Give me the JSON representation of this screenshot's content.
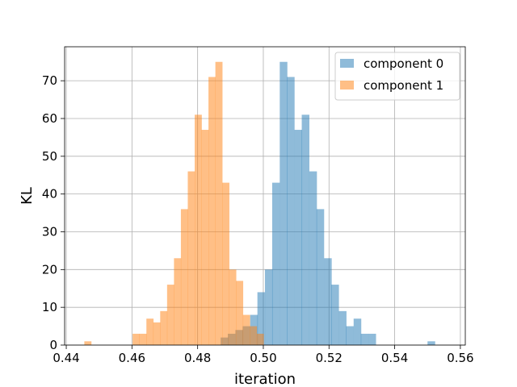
{
  "chart_data": {
    "type": "histogram",
    "xlabel": "iteration",
    "ylabel": "KL",
    "xlim": [
      0.4395,
      0.5615
    ],
    "ylim": [
      0,
      79
    ],
    "xticks": [
      0.44,
      0.46,
      0.48,
      0.5,
      0.52,
      0.54,
      0.56
    ],
    "xtick_labels": [
      "0.44",
      "0.46",
      "0.48",
      "0.50",
      "0.52",
      "0.54",
      "0.56"
    ],
    "yticks": [
      0,
      10,
      20,
      30,
      40,
      50,
      60,
      70
    ],
    "ytick_labels": [
      "0",
      "10",
      "20",
      "30",
      "40",
      "50",
      "60",
      "70"
    ],
    "grid": true,
    "legend_position": "top-right",
    "series": [
      {
        "name": "component 0",
        "color": "#1f77b4",
        "alpha": 0.5,
        "bin_width": 0.00225,
        "bins": [
          [
            0.487,
            2
          ],
          [
            0.4892,
            3
          ],
          [
            0.4915,
            4
          ],
          [
            0.4937,
            5
          ],
          [
            0.496,
            8
          ],
          [
            0.4982,
            14
          ],
          [
            0.5005,
            20
          ],
          [
            0.5027,
            43
          ],
          [
            0.505,
            75
          ],
          [
            0.5072,
            71
          ],
          [
            0.5095,
            57
          ],
          [
            0.5117,
            61
          ],
          [
            0.514,
            46
          ],
          [
            0.5162,
            36
          ],
          [
            0.5185,
            23
          ],
          [
            0.5207,
            16
          ],
          [
            0.523,
            9
          ],
          [
            0.5252,
            5
          ],
          [
            0.5275,
            7
          ],
          [
            0.5297,
            3
          ],
          [
            0.532,
            3
          ],
          [
            0.5342,
            0
          ],
          [
            0.5365,
            0
          ],
          [
            0.5387,
            0
          ],
          [
            0.541,
            0
          ],
          [
            0.5432,
            0
          ],
          [
            0.5455,
            0
          ],
          [
            0.5477,
            0
          ],
          [
            0.55,
            1
          ]
        ]
      },
      {
        "name": "component 1",
        "color": "#ff7f0e",
        "alpha": 0.5,
        "bin_width": 0.0021,
        "bins": [
          [
            0.4455,
            1
          ],
          [
            0.4476,
            0
          ],
          [
            0.4497,
            0
          ],
          [
            0.4518,
            0
          ],
          [
            0.4539,
            0
          ],
          [
            0.456,
            0
          ],
          [
            0.4581,
            0
          ],
          [
            0.4602,
            3
          ],
          [
            0.4623,
            3
          ],
          [
            0.4644,
            7
          ],
          [
            0.4665,
            6
          ],
          [
            0.4686,
            9
          ],
          [
            0.4707,
            16
          ],
          [
            0.4728,
            23
          ],
          [
            0.4749,
            36
          ],
          [
            0.477,
            46
          ],
          [
            0.4791,
            61
          ],
          [
            0.4812,
            57
          ],
          [
            0.4833,
            71
          ],
          [
            0.4854,
            75
          ],
          [
            0.4875,
            43
          ],
          [
            0.4896,
            20
          ],
          [
            0.4917,
            17
          ],
          [
            0.4938,
            8
          ],
          [
            0.4959,
            5
          ],
          [
            0.498,
            3
          ]
        ]
      }
    ]
  }
}
